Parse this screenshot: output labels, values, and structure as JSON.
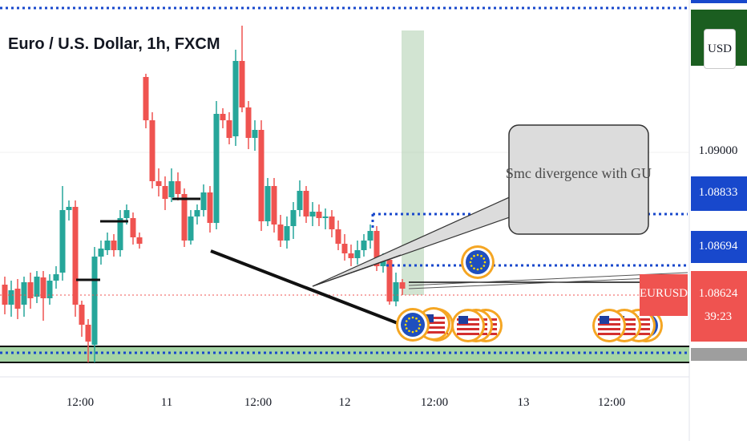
{
  "title": "Euro / U.S. Dollar, 1h, FXCM",
  "callout": "Smc divergence with GU",
  "currency_button": "USD",
  "symbol_tag": "EURUSD",
  "countdown": "39:23",
  "price_labels": {
    "p09000": "1.09000",
    "p08833": "1.08833",
    "p08694": "1.08694",
    "p08624": "1.08624"
  },
  "time_labels": [
    "12:00",
    "11",
    "12:00",
    "12",
    "12:00",
    "13",
    "12:00"
  ],
  "colors": {
    "up": "#26a69a",
    "down": "#ef5350",
    "blue": "#1848cc",
    "zone": "#8fc98f",
    "green_block": "#1b5e20"
  }
}
